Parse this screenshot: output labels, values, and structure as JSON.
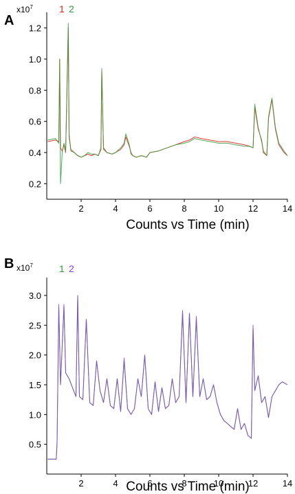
{
  "colors": {
    "red": "#e0241b",
    "green": "#2f9b3a",
    "blue": "#3a3bd1",
    "purple": "#8a3fd0",
    "axis": "#000000"
  },
  "chart_data": [
    {
      "panel": "A",
      "type": "line",
      "scale_label": "x10",
      "scale_exp": "7",
      "xlabel": "Counts vs Time (min)",
      "ylabel": "",
      "xlim": [
        0,
        14
      ],
      "ylim": [
        0.1,
        1.3
      ],
      "xticks": [
        "2",
        "4",
        "6",
        "8",
        "10",
        "12",
        "14"
      ],
      "xtick_values": [
        2,
        4,
        6,
        8,
        10,
        12,
        14
      ],
      "yticks": [
        "0.2",
        "0.4",
        "0.6",
        "0.8",
        "1.0",
        "1.2"
      ],
      "ytick_values": [
        0.2,
        0.4,
        0.6,
        0.8,
        1.0,
        1.2
      ],
      "grid": false,
      "legend": "top-left",
      "series": [
        {
          "name": "1",
          "color": "#e0241b",
          "x": [
            0.05,
            0.5,
            0.7,
            0.75,
            0.8,
            0.9,
            1.0,
            1.1,
            1.25,
            1.3,
            1.4,
            1.6,
            1.8,
            2.0,
            2.2,
            2.4,
            2.6,
            2.8,
            3.0,
            3.15,
            3.2,
            3.3,
            3.5,
            3.8,
            4.0,
            4.3,
            4.5,
            4.6,
            4.8,
            4.9,
            5.0,
            5.2,
            5.5,
            5.8,
            6.0,
            6.5,
            7.0,
            7.5,
            8.0,
            8.3,
            8.6,
            9.0,
            9.5,
            10.0,
            10.5,
            11.0,
            11.5,
            11.8,
            12.0,
            12.1,
            12.3,
            12.5,
            12.6,
            12.8,
            12.9,
            13.1,
            13.3,
            13.5,
            13.8,
            14.0
          ],
          "values": [
            0.47,
            0.48,
            0.47,
            1.0,
            0.43,
            0.41,
            0.45,
            0.4,
            1.2,
            0.5,
            0.42,
            0.4,
            0.38,
            0.37,
            0.38,
            0.39,
            0.38,
            0.39,
            0.38,
            0.42,
            0.92,
            0.43,
            0.4,
            0.39,
            0.4,
            0.42,
            0.45,
            0.5,
            0.44,
            0.4,
            0.38,
            0.37,
            0.38,
            0.37,
            0.4,
            0.41,
            0.43,
            0.45,
            0.47,
            0.48,
            0.5,
            0.49,
            0.48,
            0.47,
            0.47,
            0.46,
            0.45,
            0.44,
            0.43,
            0.69,
            0.55,
            0.48,
            0.4,
            0.38,
            0.62,
            0.74,
            0.55,
            0.45,
            0.4,
            0.38
          ]
        },
        {
          "name": "2",
          "color": "#2f9b3a",
          "x": [
            0.05,
            0.5,
            0.7,
            0.75,
            0.8,
            0.9,
            1.0,
            1.1,
            1.25,
            1.3,
            1.4,
            1.6,
            1.8,
            2.0,
            2.2,
            2.4,
            2.6,
            2.8,
            3.0,
            3.15,
            3.2,
            3.3,
            3.5,
            3.8,
            4.0,
            4.3,
            4.5,
            4.6,
            4.8,
            4.9,
            5.0,
            5.2,
            5.5,
            5.8,
            6.0,
            6.5,
            7.0,
            7.5,
            8.0,
            8.3,
            8.6,
            9.0,
            9.5,
            10.0,
            10.5,
            11.0,
            11.5,
            11.8,
            12.0,
            12.1,
            12.3,
            12.5,
            12.6,
            12.8,
            12.9,
            13.1,
            13.3,
            13.5,
            13.8,
            14.0
          ],
          "values": [
            0.48,
            0.49,
            0.46,
            1.0,
            0.2,
            0.4,
            0.46,
            0.41,
            1.23,
            0.52,
            0.41,
            0.4,
            0.38,
            0.37,
            0.38,
            0.4,
            0.39,
            0.39,
            0.38,
            0.43,
            0.94,
            0.42,
            0.4,
            0.39,
            0.4,
            0.43,
            0.46,
            0.52,
            0.45,
            0.39,
            0.38,
            0.37,
            0.38,
            0.37,
            0.4,
            0.41,
            0.43,
            0.45,
            0.46,
            0.47,
            0.49,
            0.48,
            0.47,
            0.46,
            0.46,
            0.45,
            0.44,
            0.44,
            0.43,
            0.71,
            0.56,
            0.47,
            0.41,
            0.38,
            0.63,
            0.75,
            0.56,
            0.46,
            0.41,
            0.38
          ]
        }
      ]
    },
    {
      "panel": "B",
      "type": "line",
      "scale_label": "x10",
      "scale_exp": "7",
      "xlabel": "Counts vs Time (min)",
      "ylabel": "",
      "xlim": [
        0,
        14
      ],
      "ylim": [
        0.0,
        3.3
      ],
      "xticks": [
        "2",
        "4",
        "6",
        "8",
        "10",
        "12",
        "14"
      ],
      "xtick_values": [
        2,
        4,
        6,
        8,
        10,
        12,
        14
      ],
      "yticks": [
        "0.5",
        "1.0",
        "1.5",
        "2.0",
        "2.5",
        "3.0"
      ],
      "ytick_values": [
        0.5,
        1.0,
        1.5,
        2.0,
        2.5,
        3.0
      ],
      "grid": false,
      "legend": "top-left",
      "series": [
        {
          "name": "1",
          "color": "#2f9b3a",
          "x": [
            0.05,
            0.55,
            0.6,
            0.7,
            0.8,
            1.0,
            1.1,
            1.3,
            1.5,
            1.7,
            1.8,
            1.9,
            2.1,
            2.3,
            2.5,
            2.7,
            2.9,
            3.1,
            3.3,
            3.5,
            3.7,
            3.9,
            4.1,
            4.3,
            4.5,
            4.7,
            4.9,
            5.1,
            5.3,
            5.5,
            5.7,
            5.9,
            6.1,
            6.3,
            6.5,
            6.7,
            6.9,
            7.1,
            7.3,
            7.5,
            7.7,
            7.9,
            8.1,
            8.3,
            8.5,
            8.7,
            8.9,
            9.1,
            9.3,
            9.5,
            9.7,
            9.9,
            10.1,
            10.3,
            10.5,
            10.7,
            10.9,
            11.1,
            11.3,
            11.5,
            11.7,
            11.9,
            12.0,
            12.1,
            12.3,
            12.5,
            12.7,
            12.9,
            13.1,
            13.3,
            13.5,
            13.7,
            14.0
          ],
          "values": [
            0.25,
            0.25,
            0.55,
            2.8,
            1.5,
            2.8,
            1.7,
            1.6,
            1.45,
            1.3,
            3.0,
            1.3,
            1.25,
            2.6,
            1.2,
            1.15,
            1.9,
            1.4,
            1.2,
            1.6,
            1.15,
            1.1,
            1.6,
            1.05,
            1.9,
            1.1,
            1.0,
            1.1,
            1.6,
            1.3,
            2.0,
            1.1,
            1.0,
            1.55,
            1.05,
            1.45,
            1.1,
            1.15,
            1.6,
            1.2,
            1.3,
            2.7,
            1.2,
            2.7,
            1.3,
            2.6,
            1.3,
            1.6,
            1.25,
            1.3,
            1.5,
            1.2,
            1.0,
            0.9,
            0.85,
            0.8,
            0.75,
            1.1,
            0.75,
            0.85,
            0.65,
            0.6,
            2.45,
            1.4,
            1.65,
            1.2,
            1.3,
            0.95,
            1.3,
            1.4,
            1.5,
            1.55,
            1.5
          ]
        },
        {
          "name": "2",
          "color": "#8a3fd0",
          "x": [
            0.05,
            0.55,
            0.6,
            0.7,
            0.8,
            1.0,
            1.1,
            1.3,
            1.5,
            1.7,
            1.8,
            1.9,
            2.1,
            2.3,
            2.5,
            2.7,
            2.9,
            3.1,
            3.3,
            3.5,
            3.7,
            3.9,
            4.1,
            4.3,
            4.5,
            4.7,
            4.9,
            5.1,
            5.3,
            5.5,
            5.7,
            5.9,
            6.1,
            6.3,
            6.5,
            6.7,
            6.9,
            7.1,
            7.3,
            7.5,
            7.7,
            7.9,
            8.1,
            8.3,
            8.5,
            8.7,
            8.9,
            9.1,
            9.3,
            9.5,
            9.7,
            9.9,
            10.1,
            10.3,
            10.5,
            10.7,
            10.9,
            11.1,
            11.3,
            11.5,
            11.7,
            11.9,
            12.0,
            12.1,
            12.3,
            12.5,
            12.7,
            12.9,
            13.1,
            13.3,
            13.5,
            13.7,
            14.0
          ],
          "values": [
            0.25,
            0.25,
            0.5,
            2.85,
            1.5,
            2.85,
            1.7,
            1.6,
            1.45,
            1.3,
            3.0,
            1.3,
            1.25,
            2.6,
            1.2,
            1.15,
            1.9,
            1.4,
            1.2,
            1.6,
            1.15,
            1.1,
            1.6,
            1.05,
            1.95,
            1.1,
            1.0,
            1.1,
            1.6,
            1.3,
            2.0,
            1.1,
            1.0,
            1.55,
            1.05,
            1.45,
            1.1,
            1.15,
            1.6,
            1.2,
            1.3,
            2.75,
            1.2,
            2.7,
            1.3,
            2.65,
            1.3,
            1.6,
            1.25,
            1.3,
            1.5,
            1.2,
            1.0,
            0.9,
            0.85,
            0.8,
            0.75,
            1.1,
            0.75,
            0.85,
            0.65,
            0.6,
            2.5,
            1.4,
            1.65,
            1.2,
            1.3,
            0.95,
            1.3,
            1.4,
            1.5,
            1.55,
            1.5
          ]
        }
      ]
    }
  ]
}
